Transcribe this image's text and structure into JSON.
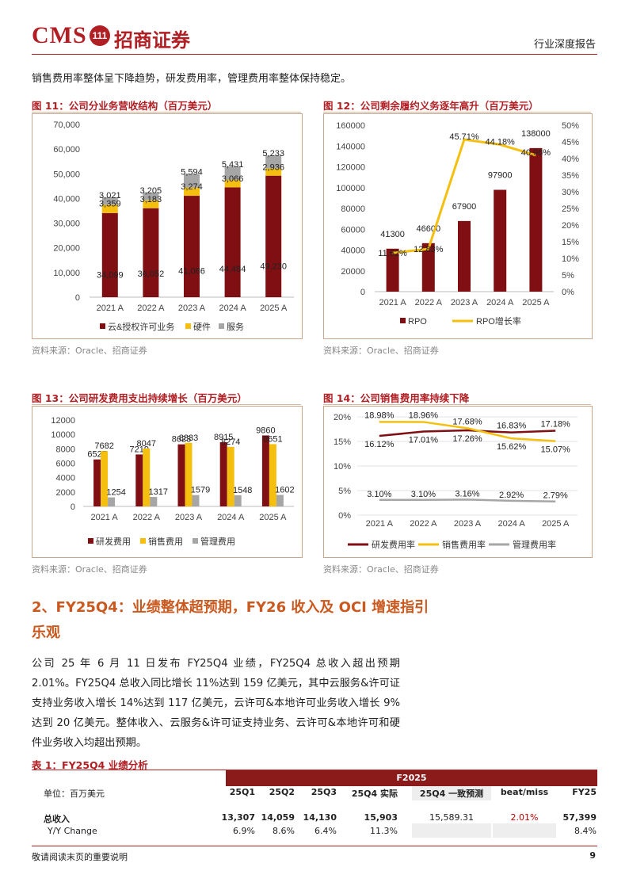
{
  "header": {
    "logo_text": "CMS",
    "logo_badge": "111",
    "company_cn": "招商证券",
    "report_type": "行业深度报告"
  },
  "intro": "销售费用率整体呈下降趋势，研发费用率，管理费用率整体保持稳定。",
  "figures": {
    "fig11": {
      "title": "图 11：公司分业务营收结构（百万美元）",
      "source": "资料来源：Oracle、招商证券"
    },
    "fig12": {
      "title": "图 12：公司剩余履约义务逐年高升（百万美元）",
      "source": "资料来源：Oracle、招商证券"
    },
    "fig13": {
      "title": "图 13：公司研发费用支出持续增长（百万美元）",
      "source": "资料来源：Oracle、招商证券"
    },
    "fig14": {
      "title": "图 14：公司销售费用率持续下降",
      "source": "资料来源：Oracle、招商证券"
    }
  },
  "chart_data": [
    {
      "id": "fig11",
      "type": "bar",
      "stacked": true,
      "categories": [
        "2021 A",
        "2022 A",
        "2023 A",
        "2024 A",
        "2025 A"
      ],
      "series": [
        {
          "name": "云&授权许可业务",
          "color": "#7f0f12",
          "values": [
            34099,
            36052,
            41086,
            44484,
            49230
          ],
          "labels": [
            "34,099",
            "36,052",
            "41,086",
            "44,484",
            "49,230"
          ]
        },
        {
          "name": "硬件",
          "color": "#f5bf10",
          "values": [
            3359,
            3183,
            3274,
            3066,
            2936
          ],
          "labels": [
            "3,359",
            "3,183",
            "3,274",
            "3,066",
            "2,936"
          ]
        },
        {
          "name": "服务",
          "color": "#a6a6a6",
          "values": [
            3021,
            3205,
            5594,
            5431,
            5233
          ],
          "labels": [
            "3,021",
            "3,205",
            "5,594",
            "5,431",
            "5,233"
          ]
        }
      ],
      "yticks": [
        "0",
        "10,000",
        "20,000",
        "30,000",
        "40,000",
        "50,000",
        "60,000",
        "70,000"
      ],
      "ylim": [
        0,
        70000
      ],
      "legend": "bottom"
    },
    {
      "id": "fig12",
      "type": "bar+line",
      "categories": [
        "2021 A",
        "2022 A",
        "2023 A",
        "2024 A",
        "2025 A"
      ],
      "bars": {
        "name": "RPO",
        "color": "#7f0f12",
        "values": [
          41300,
          46600,
          67900,
          97900,
          138000
        ],
        "labels": [
          "41300",
          "46600",
          "67900",
          "97900",
          "138000"
        ]
      },
      "line": {
        "name": "RPO增长率",
        "color": "#f5bf10",
        "values": [
          11.62,
          12.83,
          45.71,
          44.18,
          40.96
        ],
        "labels": [
          "11.62%",
          "12.83%",
          "45.71%",
          "44.18%",
          "40.96%"
        ]
      },
      "yticks": [
        "0",
        "20000",
        "40000",
        "60000",
        "80000",
        "100000",
        "120000",
        "140000",
        "160000"
      ],
      "ylim": [
        0,
        160000
      ],
      "y2ticks": [
        "0%",
        "5%",
        "10%",
        "15%",
        "20%",
        "25%",
        "30%",
        "35%",
        "40%",
        "45%",
        "50%"
      ],
      "y2lim": [
        0,
        50
      ],
      "legend": "bottom"
    },
    {
      "id": "fig13",
      "type": "bar",
      "categories": [
        "2021 A",
        "2022 A",
        "2023 A",
        "2024 A",
        "2025 A"
      ],
      "series": [
        {
          "name": "研发费用",
          "color": "#7f0f12",
          "values": [
            6527,
            7219,
            8623,
            8915,
            9860
          ]
        },
        {
          "name": "销售费用",
          "color": "#f5bf10",
          "values": [
            7682,
            8047,
            8833,
            8274,
            8651
          ]
        },
        {
          "name": "管理费用",
          "color": "#a6a6a6",
          "values": [
            1254,
            1317,
            1579,
            1548,
            1602
          ]
        }
      ],
      "yticks": [
        "0",
        "2000",
        "4000",
        "6000",
        "8000",
        "10000",
        "12000"
      ],
      "ylim": [
        0,
        12000
      ],
      "legend": "bottom"
    },
    {
      "id": "fig14",
      "type": "line",
      "categories": [
        "2021 A",
        "2022 A",
        "2023 A",
        "2024 A",
        "2025 A"
      ],
      "series": [
        {
          "name": "研发费用率",
          "color": "#7f0f12",
          "values": [
            16.12,
            17.01,
            17.26,
            16.83,
            17.18
          ],
          "labels": [
            "16.12%",
            "17.01%",
            "17.26%",
            "16.83%",
            "17.18%"
          ]
        },
        {
          "name": "销售费用率",
          "color": "#f5bf10",
          "values": [
            18.98,
            18.96,
            17.68,
            15.62,
            15.07
          ],
          "labels": [
            "18.98%",
            "18.96%",
            "17.68%",
            "15.62%",
            "15.07%"
          ]
        },
        {
          "name": "管理费用率",
          "color": "#a6a6a6",
          "values": [
            3.1,
            3.1,
            3.16,
            2.92,
            2.79
          ],
          "labels": [
            "3.10%",
            "3.10%",
            "3.16%",
            "2.92%",
            "2.79%"
          ]
        }
      ],
      "yticks": [
        "0%",
        "5%",
        "10%",
        "15%",
        "20%"
      ],
      "ylim": [
        0,
        20
      ],
      "legend": "bottom"
    }
  ],
  "section2": {
    "title_line1": "2、FY25Q4：业绩整体超预期，FY26 收入及 OCI 增速指引",
    "title_line2": "乐观",
    "body": "公司 25 年 6 月 11 日发布 FY25Q4 业绩，FY25Q4 总收入超出预期 2.01%。FY25Q4 总收入同比增长 11%达到 159 亿美元，其中云服务&许可证支持业务收入增长 14%达到 117 亿美元，云许可&本地许可业务收入增长 9%达到 20 亿美元。整体收入、云服务&许可证支持业务、云许可&本地许可和硬件业务收入均超出预期。"
  },
  "table": {
    "title": "表 1：FY25Q4 业绩分析",
    "group_header": "F2025",
    "unit": "单位：百万美元",
    "columns": [
      "25Q1",
      "25Q2",
      "25Q3",
      "25Q4 实际",
      "25Q4 一致预测",
      "beat/miss",
      "FY25"
    ],
    "rows": [
      {
        "label": "总收入",
        "cells": [
          "13,307",
          "14,059",
          "14,130",
          "15,903",
          "15,589.31",
          "2.01%",
          "57,399"
        ]
      },
      {
        "label": "Y/Y Change",
        "cells": [
          "6.9%",
          "8.6%",
          "6.4%",
          "11.3%",
          "",
          "",
          "8.4%"
        ]
      }
    ]
  },
  "footer": {
    "disclaimer": "敬请阅读末页的重要说明",
    "page": "9"
  }
}
